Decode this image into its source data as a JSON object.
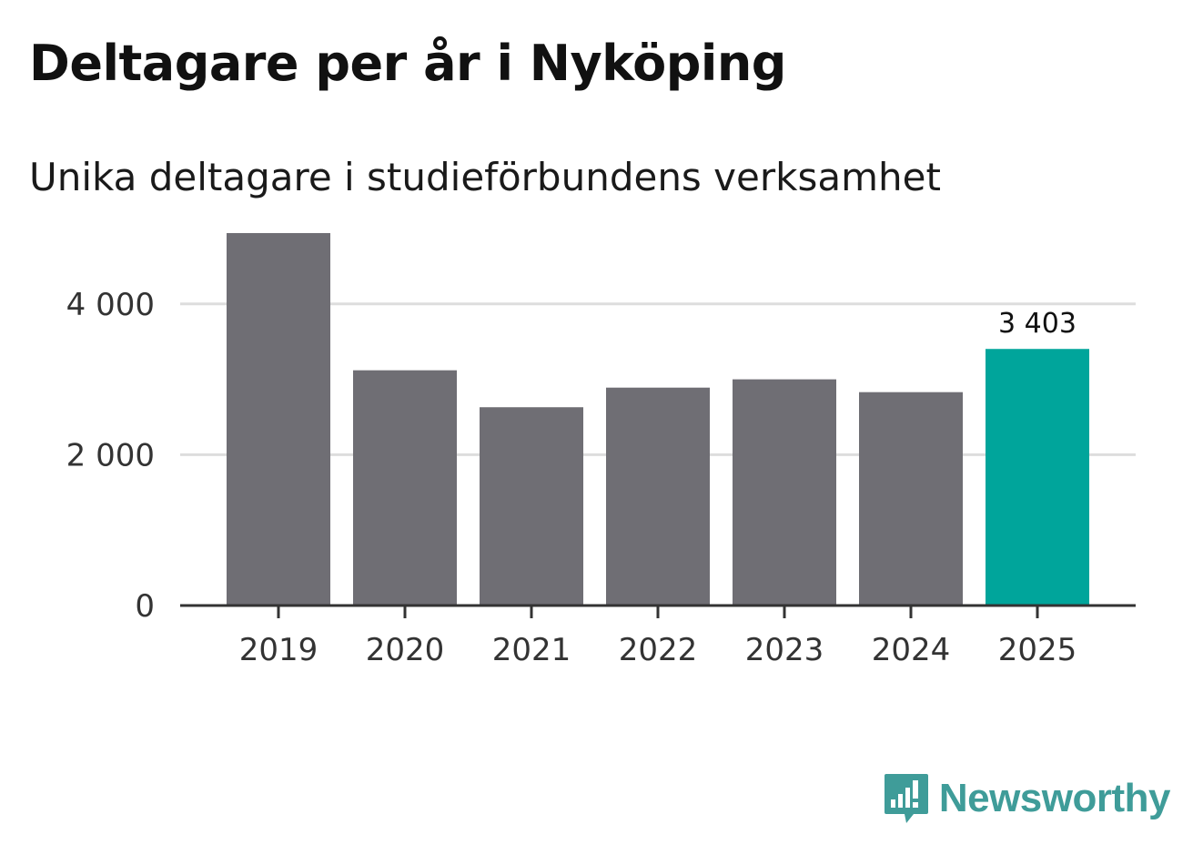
{
  "chart_data": {
    "type": "bar",
    "title": "Deltagare per år i Nyköping",
    "subtitle": "Unika deltagare i studieförbundens verksamhet",
    "categories": [
      "2019",
      "2020",
      "2021",
      "2022",
      "2023",
      "2024",
      "2025"
    ],
    "values": [
      4940,
      3120,
      2630,
      2890,
      3000,
      2830,
      3403
    ],
    "highlight_index": 6,
    "highlight_label": "3 403",
    "yticks": [
      0,
      2000,
      4000
    ],
    "ytick_labels": [
      "0",
      "2 000",
      "4 000"
    ],
    "ylim": [
      0,
      5000
    ],
    "grid": true,
    "xlabel": "",
    "ylabel": "",
    "colors": {
      "bar": "#6f6e74",
      "highlight": "#00a59b",
      "grid": "#dddddd",
      "axis": "#333333"
    }
  },
  "brand": {
    "name": "Newsworthy",
    "color": "#3f9c99",
    "icon": "newsworthy-logo-icon"
  }
}
